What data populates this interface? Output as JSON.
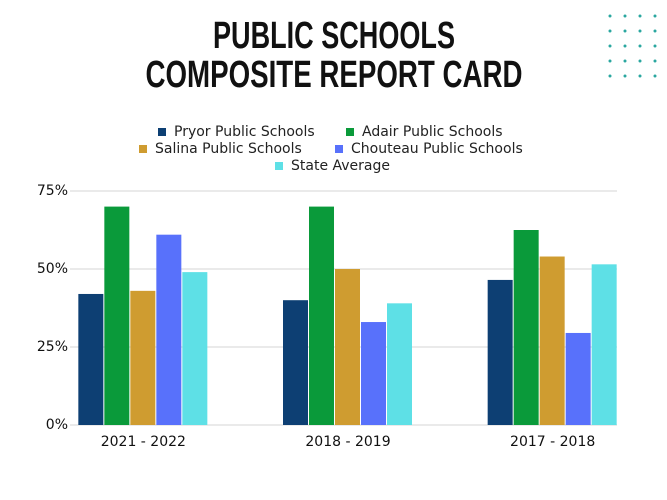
{
  "chart_data": {
    "type": "bar",
    "title": [
      "PUBLIC SCHOOLS",
      "COMPOSITE REPORT CARD"
    ],
    "categories": [
      "2021 - 2022",
      "2018 - 2019",
      "2017 - 2018"
    ],
    "series": [
      {
        "name": "Pryor Public Schools",
        "color": "#0d3f73",
        "values": [
          42,
          40,
          46.5
        ]
      },
      {
        "name": "Adair Public Schools",
        "color": "#0a9a3a",
        "values": [
          70,
          70,
          62.5
        ]
      },
      {
        "name": "Salina Public Schools",
        "color": "#cf9c30",
        "values": [
          43,
          50,
          54
        ]
      },
      {
        "name": "Chouteau Public Schools",
        "color": "#5871fb",
        "values": [
          61,
          33,
          29.5
        ]
      },
      {
        "name": "State Average",
        "color": "#5ee0e6",
        "values": [
          49,
          39,
          51.5
        ]
      }
    ],
    "ylim": [
      0,
      75
    ],
    "yticks": [
      {
        "value": 0,
        "label": "0%"
      },
      {
        "value": 25,
        "label": "25%"
      },
      {
        "value": 50,
        "label": "50%"
      },
      {
        "value": 75,
        "label": "75%"
      }
    ],
    "grid": true
  }
}
